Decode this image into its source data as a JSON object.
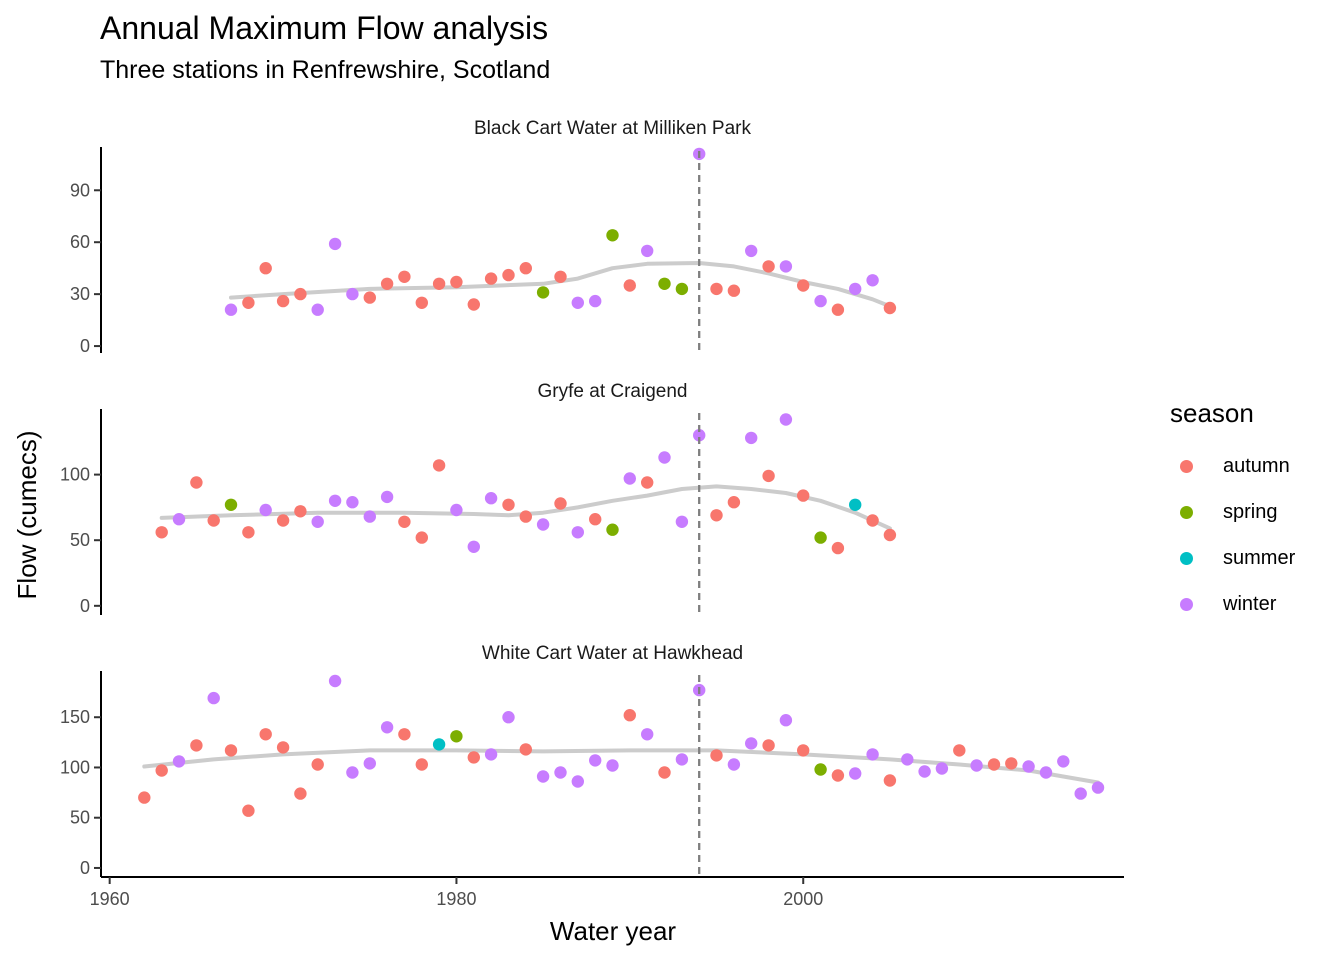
{
  "title": "Annual Maximum Flow analysis",
  "subtitle": "Three stations in Renfrewshire, Scotland",
  "chart_data": {
    "type": "scatter",
    "x_axis": {
      "label": "Water year",
      "range": [
        1959.5,
        2018.5
      ],
      "ticks": [
        1960,
        1980,
        2000
      ],
      "tick_labels": [
        "1960",
        "1980",
        "2000"
      ]
    },
    "y_axis_label": "Flow (cumecs)",
    "reference_line_x": 1994,
    "legend": {
      "title": "season",
      "placement": "right",
      "items": [
        {
          "label": "autumn",
          "color": "#F8766D"
        },
        {
          "label": "spring",
          "color": "#7CAE00"
        },
        {
          "label": "summer",
          "color": "#00BFC4"
        },
        {
          "label": "winter",
          "color": "#C77CFF"
        }
      ]
    },
    "smooth_color": "#cccccc",
    "grid": false,
    "panels": [
      {
        "strip": "Black Cart Water at Milliken Park",
        "ylim": [
          -4,
          115
        ],
        "y_ticks": [
          0,
          30,
          60,
          90
        ],
        "y_tick_labels": [
          "0",
          "30",
          "60",
          "90"
        ],
        "points": [
          [
            1967,
            21,
            "winter"
          ],
          [
            1968,
            25,
            "autumn"
          ],
          [
            1969,
            45,
            "autumn"
          ],
          [
            1970,
            26,
            "autumn"
          ],
          [
            1971,
            30,
            "autumn"
          ],
          [
            1972,
            21,
            "winter"
          ],
          [
            1973,
            59,
            "winter"
          ],
          [
            1974,
            30,
            "winter"
          ],
          [
            1975,
            28,
            "autumn"
          ],
          [
            1976,
            36,
            "autumn"
          ],
          [
            1977,
            40,
            "autumn"
          ],
          [
            1978,
            25,
            "autumn"
          ],
          [
            1979,
            36,
            "autumn"
          ],
          [
            1980,
            37,
            "autumn"
          ],
          [
            1981,
            24,
            "autumn"
          ],
          [
            1982,
            39,
            "autumn"
          ],
          [
            1983,
            41,
            "autumn"
          ],
          [
            1984,
            45,
            "autumn"
          ],
          [
            1985,
            31,
            "spring"
          ],
          [
            1986,
            40,
            "autumn"
          ],
          [
            1987,
            25,
            "winter"
          ],
          [
            1988,
            26,
            "winter"
          ],
          [
            1989,
            64,
            "spring"
          ],
          [
            1990,
            35,
            "autumn"
          ],
          [
            1991,
            55,
            "winter"
          ],
          [
            1992,
            36,
            "spring"
          ],
          [
            1993,
            33,
            "spring"
          ],
          [
            1994,
            111,
            "winter"
          ],
          [
            1995,
            33,
            "autumn"
          ],
          [
            1996,
            32,
            "autumn"
          ],
          [
            1997,
            55,
            "winter"
          ],
          [
            1998,
            46,
            "autumn"
          ],
          [
            1999,
            46,
            "winter"
          ],
          [
            2000,
            35,
            "autumn"
          ],
          [
            2001,
            26,
            "winter"
          ],
          [
            2002,
            21,
            "autumn"
          ],
          [
            2003,
            33,
            "winter"
          ],
          [
            2004,
            38,
            "winter"
          ],
          [
            2005,
            22,
            "autumn"
          ]
        ],
        "smooth": [
          [
            1967,
            28
          ],
          [
            1970,
            30
          ],
          [
            1975,
            33
          ],
          [
            1980,
            34
          ],
          [
            1985,
            36
          ],
          [
            1987,
            39
          ],
          [
            1989,
            45
          ],
          [
            1991,
            47.5
          ],
          [
            1994,
            48
          ],
          [
            1996,
            46
          ],
          [
            1998,
            42
          ],
          [
            2000,
            37
          ],
          [
            2002,
            33
          ],
          [
            2004,
            27
          ],
          [
            2005,
            23
          ]
        ]
      },
      {
        "strip": "Gryfe at Craigend",
        "ylim": [
          -7,
          150
        ],
        "y_ticks": [
          0,
          50,
          100
        ],
        "y_tick_labels": [
          "0",
          "50",
          "100"
        ],
        "points": [
          [
            1963,
            56,
            "autumn"
          ],
          [
            1964,
            66,
            "winter"
          ],
          [
            1965,
            94,
            "autumn"
          ],
          [
            1966,
            65,
            "autumn"
          ],
          [
            1967,
            77,
            "spring"
          ],
          [
            1968,
            56,
            "autumn"
          ],
          [
            1969,
            73,
            "winter"
          ],
          [
            1970,
            65,
            "autumn"
          ],
          [
            1971,
            72,
            "autumn"
          ],
          [
            1972,
            64,
            "winter"
          ],
          [
            1973,
            80,
            "winter"
          ],
          [
            1974,
            79,
            "winter"
          ],
          [
            1975,
            68,
            "winter"
          ],
          [
            1976,
            83,
            "winter"
          ],
          [
            1977,
            64,
            "autumn"
          ],
          [
            1978,
            52,
            "autumn"
          ],
          [
            1979,
            107,
            "autumn"
          ],
          [
            1980,
            73,
            "winter"
          ],
          [
            1981,
            45,
            "winter"
          ],
          [
            1982,
            82,
            "winter"
          ],
          [
            1983,
            77,
            "autumn"
          ],
          [
            1984,
            68,
            "autumn"
          ],
          [
            1985,
            62,
            "winter"
          ],
          [
            1986,
            78,
            "autumn"
          ],
          [
            1987,
            56,
            "winter"
          ],
          [
            1988,
            66,
            "autumn"
          ],
          [
            1989,
            58,
            "spring"
          ],
          [
            1990,
            97,
            "winter"
          ],
          [
            1991,
            94,
            "autumn"
          ],
          [
            1992,
            113,
            "winter"
          ],
          [
            1993,
            64,
            "winter"
          ],
          [
            1994,
            130,
            "winter"
          ],
          [
            1995,
            69,
            "autumn"
          ],
          [
            1996,
            79,
            "autumn"
          ],
          [
            1997,
            128,
            "winter"
          ],
          [
            1998,
            99,
            "autumn"
          ],
          [
            1999,
            142,
            "winter"
          ],
          [
            2000,
            84,
            "autumn"
          ],
          [
            2001,
            52,
            "spring"
          ],
          [
            2002,
            44,
            "autumn"
          ],
          [
            2003,
            77,
            "summer"
          ],
          [
            2004,
            65,
            "autumn"
          ],
          [
            2005,
            54,
            "autumn"
          ]
        ],
        "smooth": [
          [
            1963,
            67
          ],
          [
            1967,
            69
          ],
          [
            1972,
            71
          ],
          [
            1977,
            71
          ],
          [
            1981,
            70
          ],
          [
            1983,
            69
          ],
          [
            1985,
            71
          ],
          [
            1987,
            75
          ],
          [
            1989,
            80
          ],
          [
            1991,
            84
          ],
          [
            1993,
            89
          ],
          [
            1995,
            91
          ],
          [
            1997,
            89
          ],
          [
            1999,
            86
          ],
          [
            2001,
            80
          ],
          [
            2003,
            71
          ],
          [
            2005,
            59
          ]
        ]
      },
      {
        "strip": "White Cart Water at Hawkhead",
        "ylim": [
          -9,
          196
        ],
        "y_ticks": [
          0,
          50,
          100,
          150
        ],
        "y_tick_labels": [
          "0",
          "50",
          "100",
          "150"
        ],
        "points": [
          [
            1962,
            70,
            "autumn"
          ],
          [
            1963,
            97,
            "autumn"
          ],
          [
            1964,
            106,
            "winter"
          ],
          [
            1965,
            122,
            "autumn"
          ],
          [
            1966,
            169,
            "winter"
          ],
          [
            1967,
            117,
            "autumn"
          ],
          [
            1968,
            57,
            "autumn"
          ],
          [
            1969,
            133,
            "autumn"
          ],
          [
            1970,
            120,
            "autumn"
          ],
          [
            1971,
            74,
            "autumn"
          ],
          [
            1972,
            103,
            "autumn"
          ],
          [
            1973,
            186,
            "winter"
          ],
          [
            1974,
            95,
            "winter"
          ],
          [
            1975,
            104,
            "winter"
          ],
          [
            1976,
            140,
            "winter"
          ],
          [
            1977,
            133,
            "autumn"
          ],
          [
            1978,
            103,
            "autumn"
          ],
          [
            1979,
            123,
            "summer"
          ],
          [
            1980,
            131,
            "spring"
          ],
          [
            1981,
            110,
            "autumn"
          ],
          [
            1982,
            113,
            "winter"
          ],
          [
            1983,
            150,
            "winter"
          ],
          [
            1984,
            118,
            "autumn"
          ],
          [
            1985,
            91,
            "winter"
          ],
          [
            1986,
            95,
            "winter"
          ],
          [
            1987,
            86,
            "winter"
          ],
          [
            1988,
            107,
            "winter"
          ],
          [
            1989,
            102,
            "winter"
          ],
          [
            1990,
            152,
            "autumn"
          ],
          [
            1991,
            133,
            "winter"
          ],
          [
            1992,
            95,
            "autumn"
          ],
          [
            1993,
            108,
            "winter"
          ],
          [
            1994,
            177,
            "winter"
          ],
          [
            1995,
            112,
            "autumn"
          ],
          [
            1996,
            103,
            "winter"
          ],
          [
            1997,
            124,
            "winter"
          ],
          [
            1998,
            122,
            "autumn"
          ],
          [
            1999,
            147,
            "winter"
          ],
          [
            2000,
            117,
            "autumn"
          ],
          [
            2001,
            98,
            "spring"
          ],
          [
            2002,
            92,
            "autumn"
          ],
          [
            2003,
            94,
            "winter"
          ],
          [
            2004,
            113,
            "winter"
          ],
          [
            2005,
            87,
            "autumn"
          ],
          [
            2006,
            108,
            "winter"
          ],
          [
            2007,
            96,
            "winter"
          ],
          [
            2008,
            99,
            "winter"
          ],
          [
            2009,
            117,
            "autumn"
          ],
          [
            2010,
            102,
            "winter"
          ],
          [
            2011,
            103,
            "autumn"
          ],
          [
            2012,
            104,
            "autumn"
          ],
          [
            2013,
            101,
            "winter"
          ],
          [
            2014,
            95,
            "winter"
          ],
          [
            2015,
            106,
            "winter"
          ],
          [
            2016,
            74,
            "winter"
          ],
          [
            2017,
            80,
            "winter"
          ]
        ],
        "smooth": [
          [
            1962,
            101
          ],
          [
            1966,
            108
          ],
          [
            1970,
            113
          ],
          [
            1975,
            117
          ],
          [
            1980,
            117
          ],
          [
            1985,
            116
          ],
          [
            1990,
            117
          ],
          [
            1995,
            117
          ],
          [
            2000,
            113
          ],
          [
            2005,
            108
          ],
          [
            2009,
            103
          ],
          [
            2013,
            97
          ],
          [
            2017,
            85
          ]
        ]
      }
    ]
  }
}
